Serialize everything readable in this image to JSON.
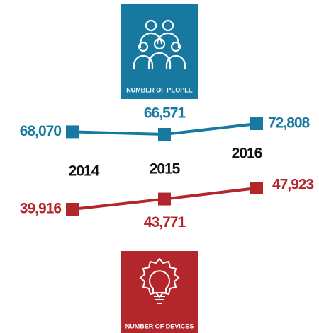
{
  "chart_data": {
    "type": "line",
    "categories": [
      "2014",
      "2015",
      "2016"
    ],
    "series": [
      {
        "name": "NUMBER OF PEOPLE",
        "color": "#17799f",
        "values": [
          68070,
          66571,
          72808
        ],
        "value_labels": [
          "68,070",
          "66,571",
          "72,808"
        ]
      },
      {
        "name": "NUMBER OF DEVICES",
        "color": "#b3262b",
        "values": [
          39916,
          43771,
          47923
        ],
        "value_labels": [
          "39,916",
          "43,771",
          "47,923"
        ]
      }
    ]
  }
}
